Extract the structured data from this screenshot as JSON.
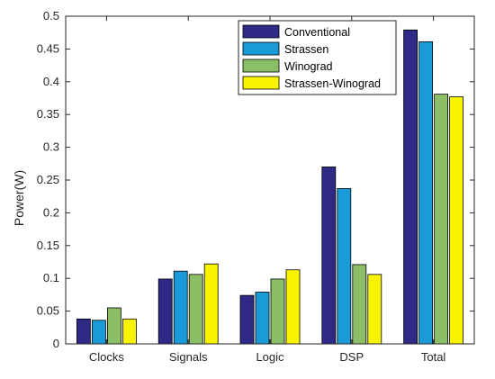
{
  "chart_data": {
    "type": "bar",
    "title": "",
    "xlabel": "",
    "ylabel": "Power(W)",
    "ylim": [
      0,
      0.5
    ],
    "yticks": [
      0,
      0.05,
      0.1,
      0.15,
      0.2,
      0.25,
      0.3,
      0.35,
      0.4,
      0.45,
      0.5
    ],
    "ytick_labels": [
      "0",
      "0.05",
      "0.1",
      "0.15",
      "0.2",
      "0.25",
      "0.3",
      "0.35",
      "0.4",
      "0.45",
      "0.5"
    ],
    "grid": false,
    "legend_position": "top-right",
    "categories": [
      "Clocks",
      "Signals",
      "Logic",
      "DSP",
      "Total"
    ],
    "series": [
      {
        "name": "Conventional",
        "color": "#2e2a86",
        "values": [
          0.038,
          0.099,
          0.074,
          0.27,
          0.479
        ]
      },
      {
        "name": "Strassen",
        "color": "#1a9bd7",
        "values": [
          0.036,
          0.111,
          0.079,
          0.237,
          0.461
        ]
      },
      {
        "name": "Winograd",
        "color": "#8cbd67",
        "values": [
          0.055,
          0.106,
          0.099,
          0.121,
          0.381
        ]
      },
      {
        "name": "Strassen-Winograd",
        "color": "#f8f400",
        "values": [
          0.038,
          0.122,
          0.113,
          0.106,
          0.377
        ]
      }
    ]
  }
}
